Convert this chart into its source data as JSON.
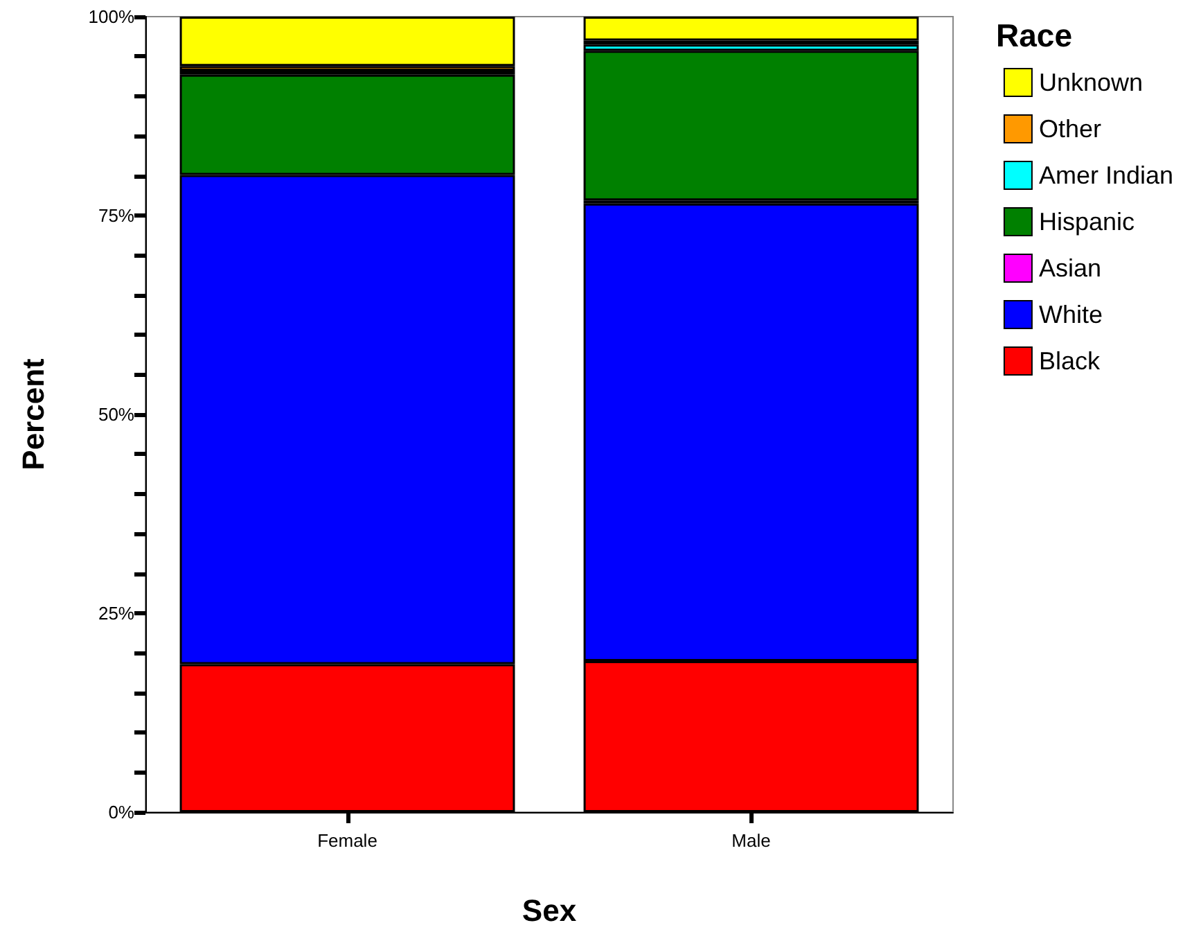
{
  "chart_data": {
    "type": "bar",
    "stacked": true,
    "xlabel": "Sex",
    "ylabel": "Percent",
    "legend_title": "Race",
    "legend": "right",
    "categories": [
      "Female",
      "Male"
    ],
    "series": [
      {
        "name": "Black",
        "color": "#ff0000",
        "values": [
          18.6,
          19.0
        ]
      },
      {
        "name": "White",
        "color": "#0000ff",
        "values": [
          61.5,
          57.5
        ]
      },
      {
        "name": "Asian",
        "color": "#ff00ff",
        "values": [
          null,
          0.4
        ]
      },
      {
        "name": "Hispanic",
        "color": "#008000",
        "values": [
          12.6,
          18.8
        ]
      },
      {
        "name": "Amer Indian",
        "color": "#00ffff",
        "values": [
          0.5,
          0.8
        ]
      },
      {
        "name": "Other",
        "color": "#ff9900",
        "values": [
          0.6,
          0.5
        ]
      },
      {
        "name": "Unknown",
        "color": "#ffff00",
        "values": [
          6.2,
          3.0
        ]
      }
    ],
    "ylim": [
      0,
      100
    ],
    "yticks": [
      {
        "value": 0,
        "label": "0%"
      },
      {
        "value": 5,
        "label": null
      },
      {
        "value": 10,
        "label": null
      },
      {
        "value": 15,
        "label": null
      },
      {
        "value": 20,
        "label": null
      },
      {
        "value": 25,
        "label": "25%"
      },
      {
        "value": 30,
        "label": null
      },
      {
        "value": 35,
        "label": null
      },
      {
        "value": 40,
        "label": null
      },
      {
        "value": 45,
        "label": null
      },
      {
        "value": 50,
        "label": "50%"
      },
      {
        "value": 55,
        "label": null
      },
      {
        "value": 60,
        "label": null
      },
      {
        "value": 65,
        "label": null
      },
      {
        "value": 70,
        "label": null
      },
      {
        "value": 75,
        "label": "75%"
      },
      {
        "value": 80,
        "label": null
      },
      {
        "value": 85,
        "label": null
      },
      {
        "value": 90,
        "label": null
      },
      {
        "value": 95,
        "label": null
      },
      {
        "value": 100,
        "label": "100%"
      }
    ],
    "grid": false
  }
}
